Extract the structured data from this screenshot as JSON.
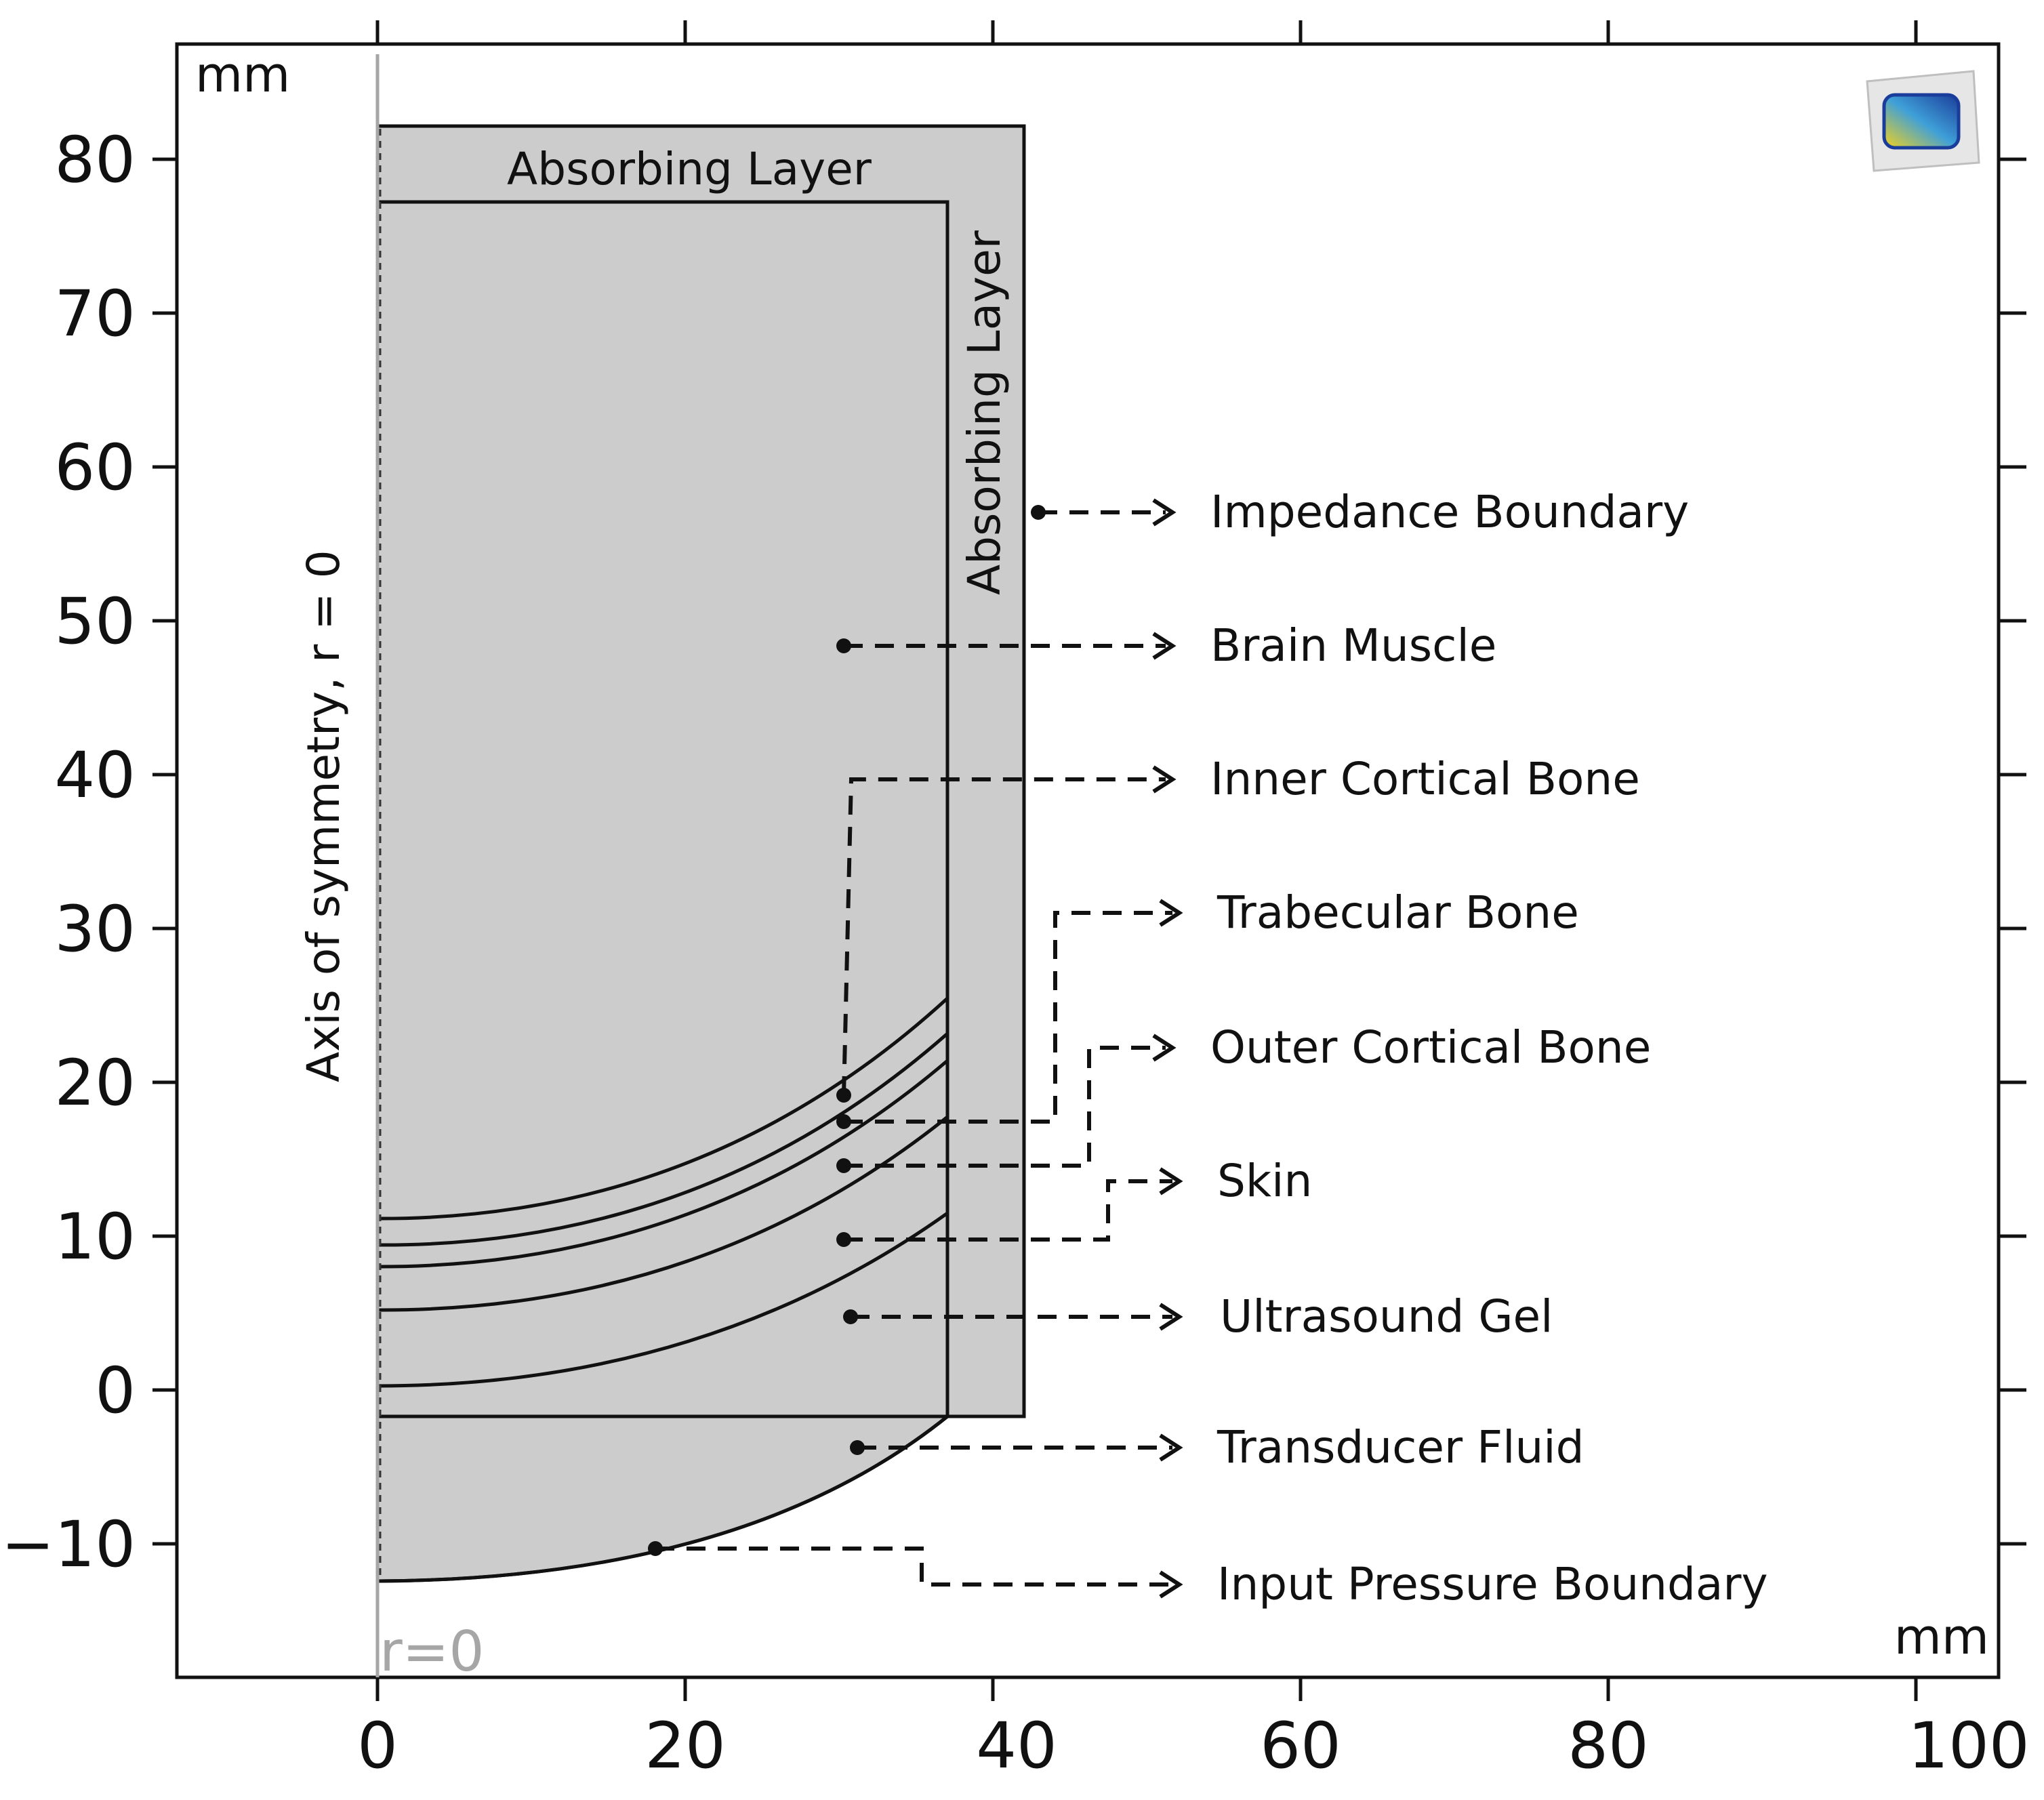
{
  "units": {
    "top_left": "mm",
    "bottom_right": "mm"
  },
  "x_axis": {
    "ticks": [
      "0",
      "20",
      "40",
      "60",
      "80",
      "100"
    ]
  },
  "y_axis": {
    "ticks": [
      "80",
      "70",
      "60",
      "50",
      "40",
      "30",
      "20",
      "10",
      "0",
      "−10"
    ]
  },
  "axis_of_symmetry_label": "Axis of symmetry, r = 0",
  "r0_label": "r=0",
  "absorbing_layer_top": "Absorbing Layer",
  "absorbing_layer_right": "Absorbing Layer",
  "callouts": [
    "Impedance Boundary",
    "Brain Muscle",
    "Inner Cortical Bone",
    "Trabecular Bone",
    "Outer Cortical Bone",
    "Skin",
    "Ultrasound Gel",
    "Transducer Fluid",
    "Input Pressure Boundary"
  ],
  "colors": {
    "domain_fill": "#cccccc",
    "outline": "#111111",
    "axis_line": "#a6a6a6"
  },
  "logo_icon": "comsol-logo-icon"
}
